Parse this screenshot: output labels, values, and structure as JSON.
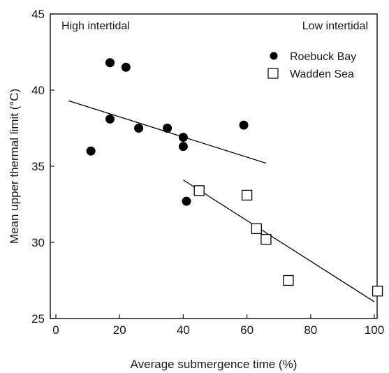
{
  "chart_data": {
    "type": "scatter",
    "xlabel": "Average submergence time (%)",
    "ylabel": "Mean upper thermal limit (°C)",
    "xlim": [
      0,
      100
    ],
    "ylim": [
      25,
      45
    ],
    "x_ticks": [
      0,
      20,
      40,
      60,
      80,
      100
    ],
    "y_ticks": [
      25,
      30,
      35,
      40,
      45
    ],
    "grid": false,
    "legend_position": "top-right",
    "annotations": [
      {
        "text": "High intertidal",
        "position": "top-left"
      },
      {
        "text": "Low intertidal",
        "position": "top-right"
      }
    ],
    "series": [
      {
        "name": "Roebuck Bay",
        "marker": "filled-circle",
        "color": "#000000",
        "points": [
          {
            "x": 17,
            "y": 41.8
          },
          {
            "x": 22,
            "y": 41.5
          },
          {
            "x": 17,
            "y": 38.1
          },
          {
            "x": 26,
            "y": 37.5
          },
          {
            "x": 35,
            "y": 37.5
          },
          {
            "x": 40,
            "y": 36.9
          },
          {
            "x": 40,
            "y": 36.3
          },
          {
            "x": 11,
            "y": 36.0
          },
          {
            "x": 59,
            "y": 37.7
          },
          {
            "x": 41,
            "y": 32.7
          }
        ],
        "trendline": {
          "x": [
            4,
            66
          ],
          "y": [
            39.3,
            35.2
          ]
        }
      },
      {
        "name": "Wadden Sea",
        "marker": "open-square",
        "color": "#000000",
        "points": [
          {
            "x": 45,
            "y": 33.4
          },
          {
            "x": 60,
            "y": 33.1
          },
          {
            "x": 63,
            "y": 30.9
          },
          {
            "x": 66,
            "y": 30.2
          },
          {
            "x": 73,
            "y": 27.5
          },
          {
            "x": 101,
            "y": 26.8
          }
        ],
        "trendline": {
          "x": [
            40,
            100
          ],
          "y": [
            34.1,
            26.1
          ]
        }
      }
    ]
  }
}
